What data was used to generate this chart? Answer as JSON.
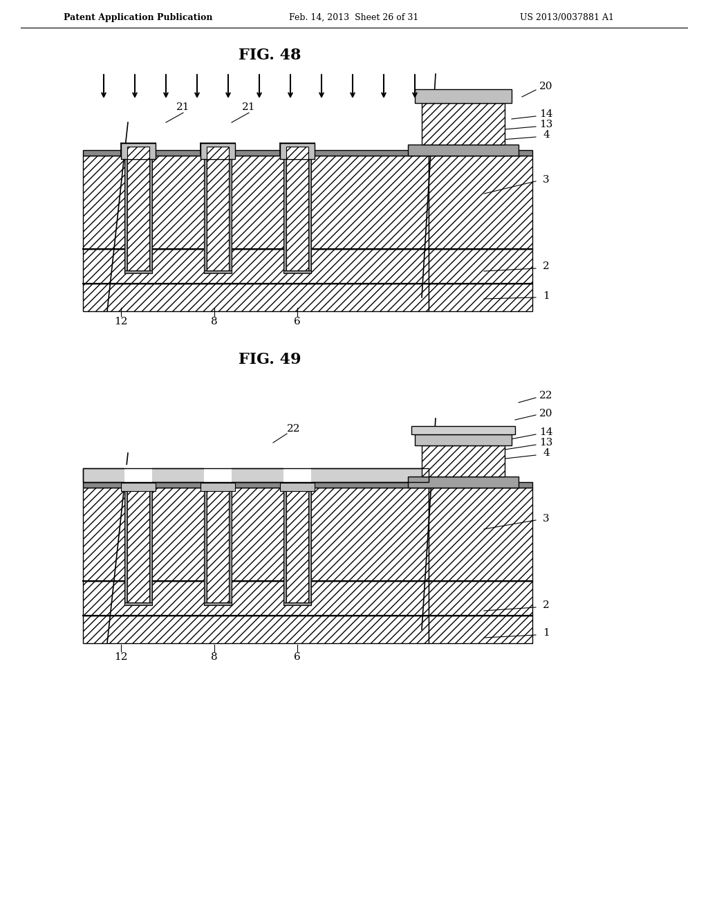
{
  "bg_color": "#ffffff",
  "header_left": "Patent Application Publication",
  "header_mid": "Feb. 14, 2013  Sheet 26 of 31",
  "header_right": "US 2013/0037881 A1",
  "fig48_title": "FIG. 48",
  "fig49_title": "FIG. 49",
  "line_color": "#000000",
  "hatch_color": "#000000",
  "hatch_pattern": "///",
  "gray_light": "#c8c8c8",
  "gray_mid": "#a0a0a0",
  "gray_dark": "#606060"
}
